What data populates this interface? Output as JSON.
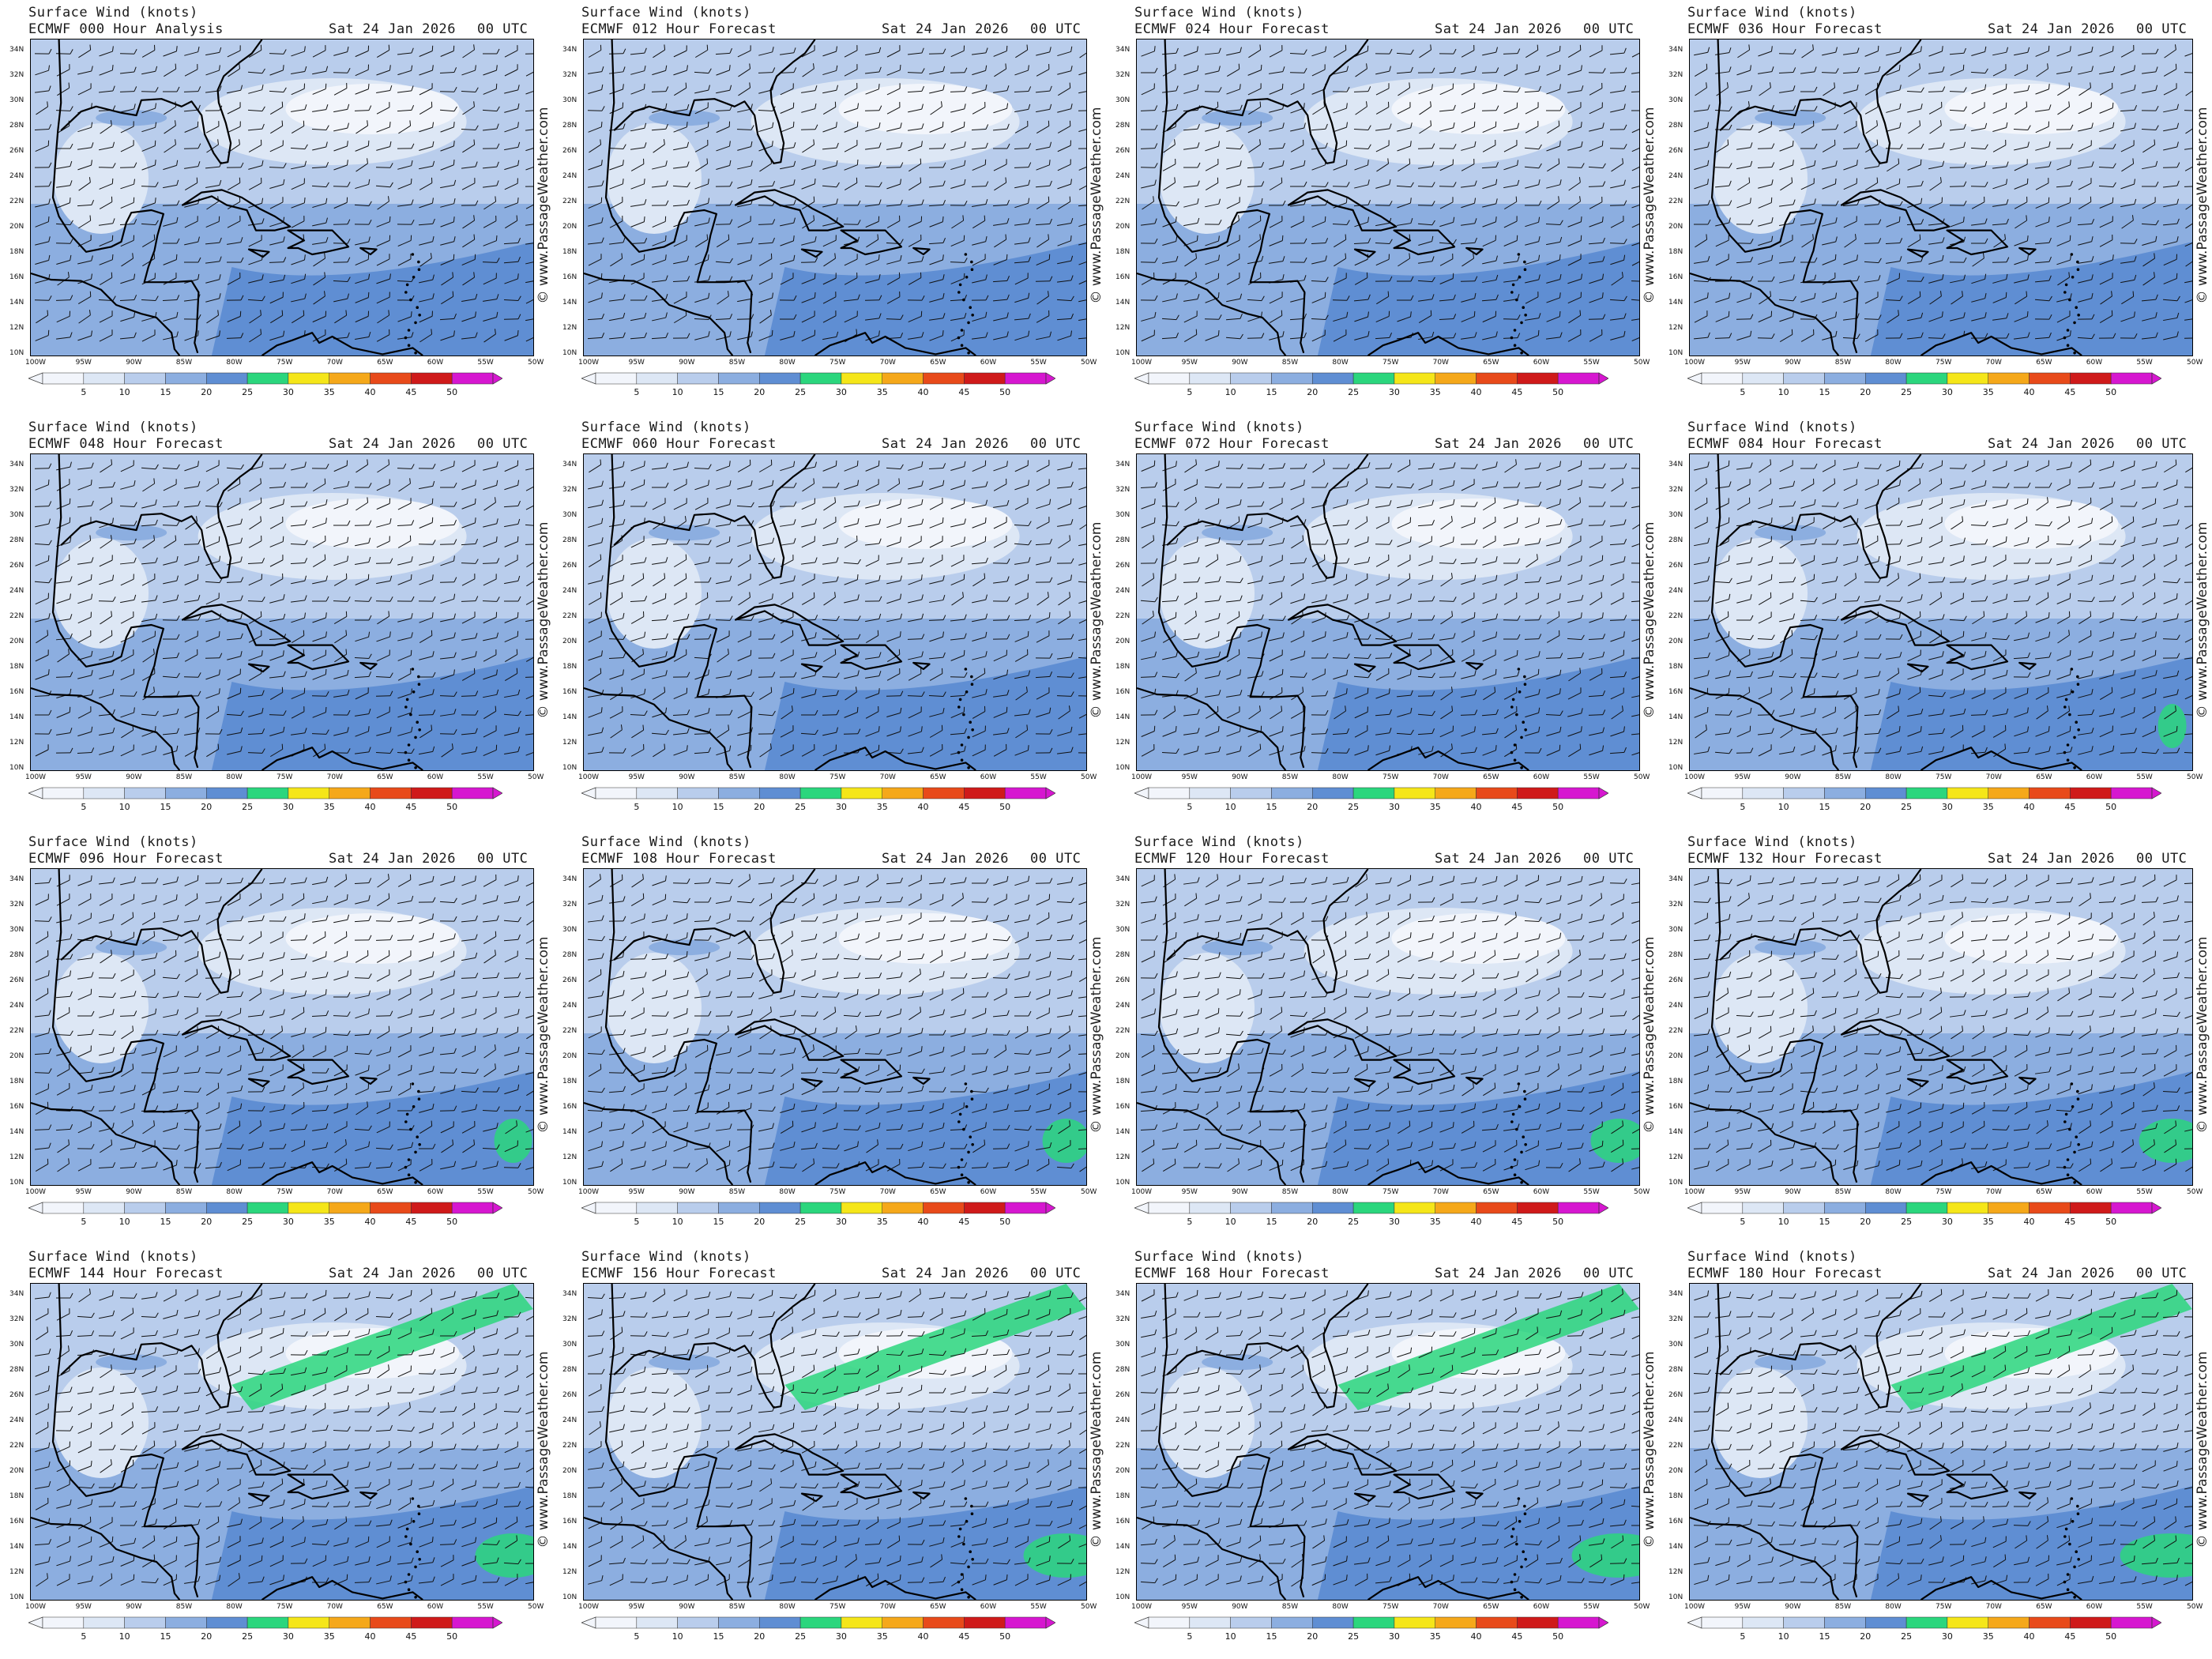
{
  "watermark": "© www.PassageWeather.com",
  "title_line1": "Surface Wind (knots)",
  "date": "Sat 24 Jan 2026",
  "utc": "00 UTC",
  "lat_labels": [
    "34N",
    "32N",
    "30N",
    "28N",
    "26N",
    "24N",
    "22N",
    "20N",
    "18N",
    "16N",
    "14N",
    "12N",
    "10N"
  ],
  "lon_labels": [
    "100W",
    "95W",
    "90W",
    "85W",
    "80W",
    "75W",
    "70W",
    "65W",
    "60W",
    "55W",
    "50W"
  ],
  "colorbar": {
    "labels": [
      "5",
      "10",
      "15",
      "20",
      "25",
      "30",
      "35",
      "40",
      "45",
      "50"
    ],
    "colors": [
      "#f2f5fb",
      "#dde7f5",
      "#b9cdec",
      "#8caee0",
      "#5f8ed3",
      "#2bd67d",
      "#f5e619",
      "#f5a81a",
      "#e84a1a",
      "#cf1a1a",
      "#d617d0"
    ]
  },
  "panels": [
    {
      "label": "ECMWF 000 Hour Analysis"
    },
    {
      "label": "ECMWF 012 Hour Forecast"
    },
    {
      "label": "ECMWF 024 Hour Forecast"
    },
    {
      "label": "ECMWF 036 Hour Forecast"
    },
    {
      "label": "ECMWF 048 Hour Forecast"
    },
    {
      "label": "ECMWF 060 Hour Forecast"
    },
    {
      "label": "ECMWF 072 Hour Forecast"
    },
    {
      "label": "ECMWF 084 Hour Forecast"
    },
    {
      "label": "ECMWF 096 Hour Forecast"
    },
    {
      "label": "ECMWF 108 Hour Forecast"
    },
    {
      "label": "ECMWF 120 Hour Forecast"
    },
    {
      "label": "ECMWF 132 Hour Forecast"
    },
    {
      "label": "ECMWF 144 Hour Forecast"
    },
    {
      "label": "ECMWF 156 Hour Forecast"
    },
    {
      "label": "ECMWF 168 Hour Forecast"
    },
    {
      "label": "ECMWF 180 Hour Forecast"
    }
  ]
}
